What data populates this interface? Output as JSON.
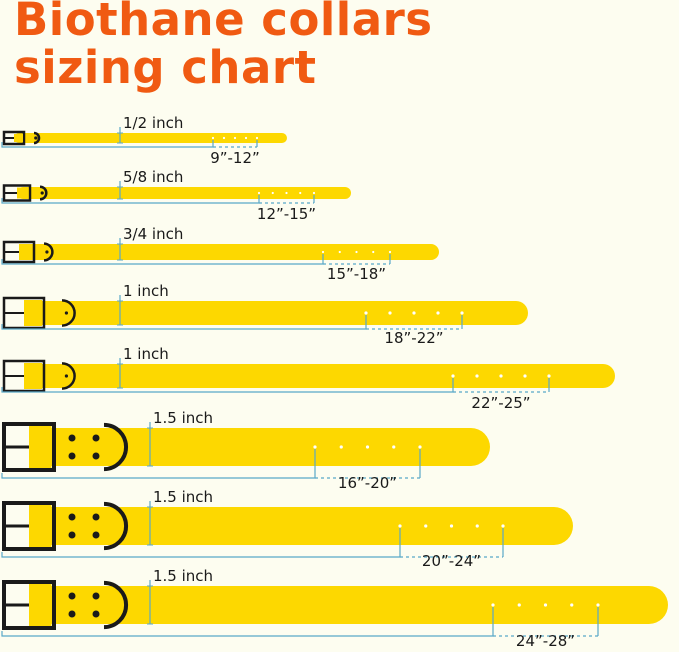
{
  "title_line1": "Biothane collars",
  "title_line2": "sizing chart",
  "colors": {
    "background": "#fdfdf0",
    "title": "#f05a12",
    "strap": "#fdd800",
    "hardware": "#1a1a1a",
    "measure_line": "#5aa8c8"
  },
  "collars": [
    {
      "width": "1/2 inch",
      "range": "9”-12”"
    },
    {
      "width": "5/8 inch",
      "range": "12”-15”"
    },
    {
      "width": "3/4 inch",
      "range": "15”-18”"
    },
    {
      "width": "1 inch",
      "range": "18”-22”"
    },
    {
      "width": "1 inch",
      "range": "22”-25”"
    },
    {
      "width": "1.5 inch",
      "range": "16”-20”"
    },
    {
      "width": "1.5 inch",
      "range": "20”-24”"
    },
    {
      "width": "1.5 inch",
      "range": "24”-28”"
    }
  ]
}
